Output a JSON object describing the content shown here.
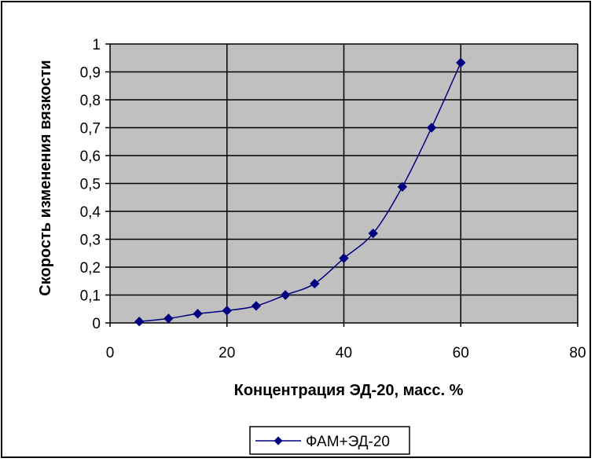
{
  "colors": {
    "plot_background": "#c0c0c0",
    "series_color": "#000080",
    "grid_color": "#000000"
  },
  "chart_data": {
    "type": "line",
    "title": "",
    "xlabel": "Концентрация ЭД-20, масс. %",
    "ylabel": "Скорость изменения вязкости",
    "xlim": [
      0,
      80
    ],
    "ylim": [
      0,
      1
    ],
    "x_ticks": [
      0,
      20,
      40,
      60,
      80
    ],
    "x_tick_labels": [
      "0",
      "20",
      "40",
      "60",
      "80"
    ],
    "y_ticks": [
      0,
      0.1,
      0.2,
      0.3,
      0.4,
      0.5,
      0.6,
      0.7,
      0.8,
      0.9,
      1
    ],
    "y_tick_labels": [
      "0",
      "0,1",
      "0,2",
      "0,3",
      "0,4",
      "0,5",
      "0,6",
      "0,7",
      "0,8",
      "0,9",
      "1"
    ],
    "grid": "major gridlines on both axes",
    "legend_position": "bottom",
    "marker": "diamond",
    "series": [
      {
        "name": "ФАМ+ЭД-20",
        "x": [
          5,
          10,
          15,
          20,
          25,
          30,
          35,
          40,
          45,
          50,
          55,
          60
        ],
        "y": [
          0.005,
          0.016,
          0.033,
          0.044,
          0.061,
          0.1,
          0.141,
          0.232,
          0.321,
          0.488,
          0.7,
          0.933
        ]
      }
    ]
  }
}
